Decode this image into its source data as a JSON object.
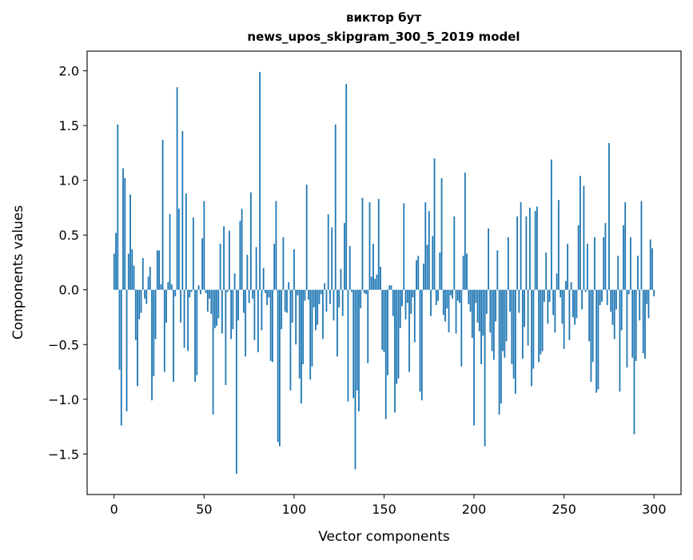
{
  "chart_data": {
    "type": "bar",
    "title": "виктор бут",
    "subtitle": "news_upos_skipgram_300_5_2019 model",
    "xlabel": "Vector components",
    "ylabel": "Components values",
    "xlim": [
      -15,
      315
    ],
    "ylim": [
      -1.87,
      2.18
    ],
    "xticks": [
      0,
      50,
      100,
      150,
      200,
      250,
      300
    ],
    "yticks": [
      -1.5,
      -1.0,
      -0.5,
      0.0,
      0.5,
      1.0,
      1.5,
      2.0
    ],
    "ytick_labels": [
      "−1.5",
      "−1.0",
      "−0.5",
      "0.0",
      "0.5",
      "1.0",
      "1.5",
      "2.0"
    ],
    "grid": false,
    "bar_color": "#1f77b4",
    "values": [
      0.33,
      0.52,
      1.51,
      -0.73,
      -1.24,
      1.11,
      1.02,
      -1.11,
      0.33,
      0.87,
      0.37,
      0.22,
      -0.46,
      -0.88,
      -0.27,
      -0.21,
      0.29,
      -0.08,
      -0.13,
      0.12,
      0.21,
      -1.01,
      -0.79,
      -0.45,
      0.36,
      0.36,
      0.05,
      1.37,
      -0.75,
      -0.3,
      0.07,
      0.69,
      0.05,
      -0.84,
      -0.06,
      1.85,
      0.74,
      -0.3,
      1.45,
      -0.53,
      0.88,
      -0.56,
      -0.07,
      -0.02,
      0.66,
      -0.84,
      -0.78,
      0.04,
      -0.04,
      0.47,
      0.81,
      -0.03,
      -0.2,
      -0.08,
      -0.22,
      -1.14,
      -0.35,
      -0.33,
      -0.26,
      0.42,
      -0.4,
      0.58,
      -0.87,
      -0.02,
      0.54,
      -0.45,
      -0.36,
      0.15,
      -1.68,
      -0.28,
      0.63,
      0.74,
      -0.21,
      -0.61,
      0.32,
      -0.12,
      0.89,
      -0.08,
      -0.46,
      0.39,
      -0.57,
      1.99,
      -0.37,
      0.2,
      -0.03,
      -0.14,
      -0.07,
      -0.65,
      -0.66,
      0.42,
      0.81,
      -1.39,
      -1.43,
      -0.36,
      0.48,
      -0.2,
      -0.21,
      0.07,
      -0.92,
      -0.3,
      0.37,
      -0.5,
      -0.05,
      -0.81,
      -1.04,
      -0.68,
      -0.1,
      0.96,
      -0.09,
      -0.82,
      -0.7,
      -0.16,
      -0.37,
      -0.32,
      -0.13,
      -0.04,
      -0.45,
      0.06,
      -0.2,
      0.69,
      -0.13,
      0.57,
      -0.28,
      1.51,
      -0.61,
      -0.16,
      0.19,
      -0.24,
      0.61,
      1.88,
      -1.02,
      0.4,
      -0.02,
      -0.99,
      -1.64,
      -0.92,
      -1.11,
      -0.17,
      0.84,
      -0.03,
      -0.04,
      -0.67,
      0.8,
      0.12,
      0.42,
      0.1,
      0.14,
      0.83,
      0.21,
      -0.55,
      -0.57,
      -1.18,
      -0.78,
      0.04,
      0.04,
      -0.24,
      -1.12,
      -0.86,
      -0.81,
      -0.35,
      -0.15,
      0.79,
      -0.27,
      -0.12,
      -0.75,
      -0.22,
      -0.07,
      -0.48,
      0.27,
      0.31,
      -0.93,
      -1.01,
      0.24,
      0.8,
      0.41,
      0.72,
      -0.24,
      0.49,
      1.2,
      -0.14,
      -0.1,
      0.34,
      1.02,
      -0.23,
      -0.29,
      -0.17,
      -0.39,
      -0.05,
      -0.08,
      0.67,
      -0.4,
      -0.1,
      -0.12,
      -0.7,
      0.31,
      1.07,
      0.33,
      -0.13,
      -0.2,
      -0.44,
      -1.24,
      -0.12,
      -0.3,
      -0.38,
      -0.68,
      -0.42,
      -1.43,
      -0.22,
      0.56,
      -0.39,
      -0.56,
      -0.64,
      -0.29,
      0.36,
      -1.14,
      -1.04,
      -0.56,
      -0.62,
      -0.47,
      0.48,
      -0.2,
      -0.68,
      -0.81,
      -0.95,
      0.67,
      -0.21,
      0.8,
      -0.63,
      -0.34,
      0.67,
      -0.51,
      0.75,
      -0.88,
      -0.72,
      0.72,
      0.76,
      -0.66,
      -0.59,
      -0.56,
      -0.11,
      0.34,
      -0.31,
      -0.11,
      1.19,
      -0.23,
      -0.39,
      0.15,
      0.82,
      -0.07,
      -0.31,
      -0.54,
      0.08,
      0.42,
      -0.46,
      0.07,
      -0.25,
      -0.32,
      -0.26,
      0.59,
      1.04,
      -0.18,
      0.95,
      -0.02,
      0.42,
      -0.47,
      -0.84,
      -0.66,
      0.48,
      -0.94,
      -0.91,
      -0.14,
      -0.11,
      0.48,
      0.61,
      -0.14,
      1.34,
      -0.2,
      -0.32,
      -0.45,
      -0.18,
      0.31,
      -0.93,
      -0.37,
      0.59,
      0.8,
      -0.71,
      -0.04,
      0.48,
      -0.62,
      -1.32,
      -0.65,
      0.31,
      -0.28,
      0.81,
      -0.58,
      -0.63,
      -0.13,
      -0.26,
      0.46,
      0.38,
      -0.06
    ]
  }
}
